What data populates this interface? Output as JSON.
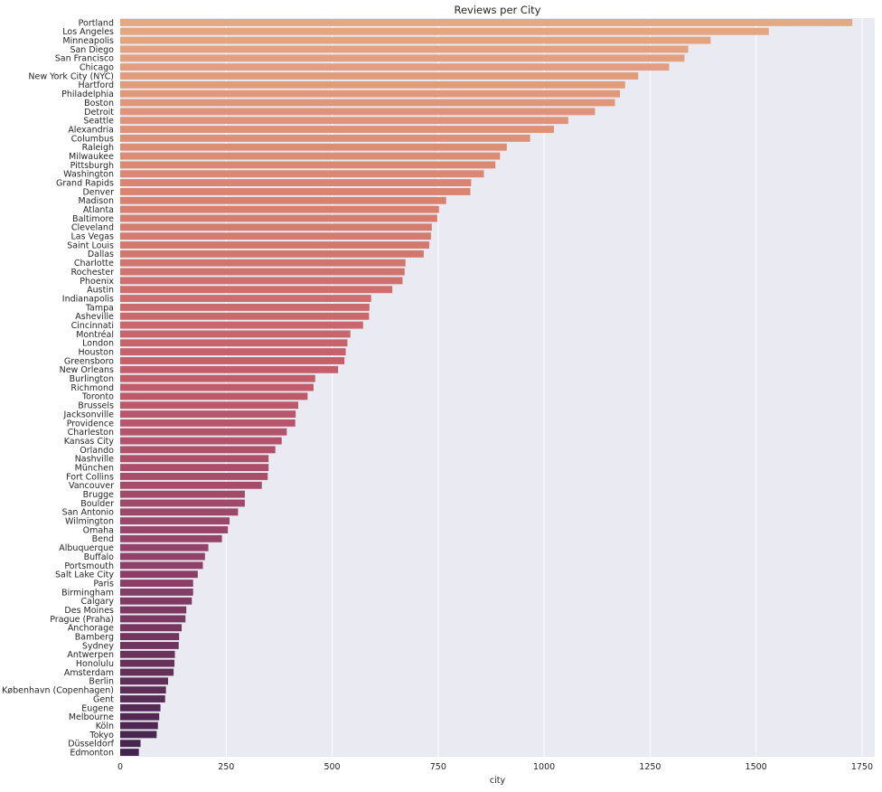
{
  "chart_data": {
    "type": "bar",
    "orientation": "horizontal",
    "title": "Reviews per City",
    "xlabel": "city",
    "ylabel": "",
    "xlim": [
      0,
      1780
    ],
    "xticks": [
      0,
      250,
      500,
      750,
      1000,
      1250,
      1500,
      1750
    ],
    "grid": true,
    "background": "#EAEAF2",
    "palette": "rocket_r",
    "palette_start": "#E5A882",
    "palette_end": "#43244E",
    "categories": [
      "Portland",
      "Los Angeles",
      "Minneapolis",
      "San Diego",
      "San Francisco",
      "Chicago",
      "New York City (NYC)",
      "Hartford",
      "Philadelphia",
      "Boston",
      "Detroit",
      "Seattle",
      "Alexandria",
      "Columbus",
      "Raleigh",
      "Milwaukee",
      "Pittsburgh",
      "Washington",
      "Grand Rapids",
      "Denver",
      "Madison",
      "Atlanta",
      "Baltimore",
      "Cleveland",
      "Las Vegas",
      "Saint Louis",
      "Dallas",
      "Charlotte",
      "Rochester",
      "Phoenix",
      "Austin",
      "Indianapolis",
      "Tampa",
      "Asheville",
      "Cincinnati",
      "Montréal",
      "London",
      "Houston",
      "Greensboro",
      "New Orleans",
      "Burlington",
      "Richmond",
      "Toronto",
      "Brussels",
      "Jacksonville",
      "Providence",
      "Charleston",
      "Kansas City",
      "Orlando",
      "Nashville",
      "München",
      "Fort Collins",
      "Vancouver",
      "Brugge",
      "Boulder",
      "San Antonio",
      "Wilmington",
      "Omaha",
      "Bend",
      "Albuquerque",
      "Buffalo",
      "Portsmouth",
      "Salt Lake City",
      "Paris",
      "Birmingham",
      "Calgary",
      "Des Moines",
      "Prague (Praha)",
      "Anchorage",
      "Bamberg",
      "Sydney",
      "Antwerpen",
      "Honolulu",
      "Amsterdam",
      "Berlin",
      "København (Copenhagen)",
      "Gent",
      "Eugene",
      "Melbourne",
      "Köln",
      "Tokyo",
      "Düsseldorf",
      "Edmonton"
    ],
    "values": [
      1727,
      1530,
      1393,
      1340,
      1331,
      1295,
      1222,
      1191,
      1179,
      1167,
      1120,
      1057,
      1023,
      967,
      912,
      896,
      885,
      858,
      828,
      826,
      769,
      752,
      748,
      735,
      733,
      729,
      716,
      673,
      671,
      666,
      642,
      592,
      588,
      587,
      573,
      543,
      536,
      532,
      529,
      514,
      460,
      456,
      442,
      420,
      414,
      413,
      393,
      381,
      366,
      350,
      350,
      348,
      334,
      294,
      294,
      278,
      258,
      254,
      240,
      208,
      200,
      195,
      183,
      172,
      172,
      169,
      156,
      154,
      145,
      139,
      138,
      129,
      128,
      126,
      113,
      108,
      106,
      95,
      92,
      89,
      86,
      48,
      44
    ]
  }
}
